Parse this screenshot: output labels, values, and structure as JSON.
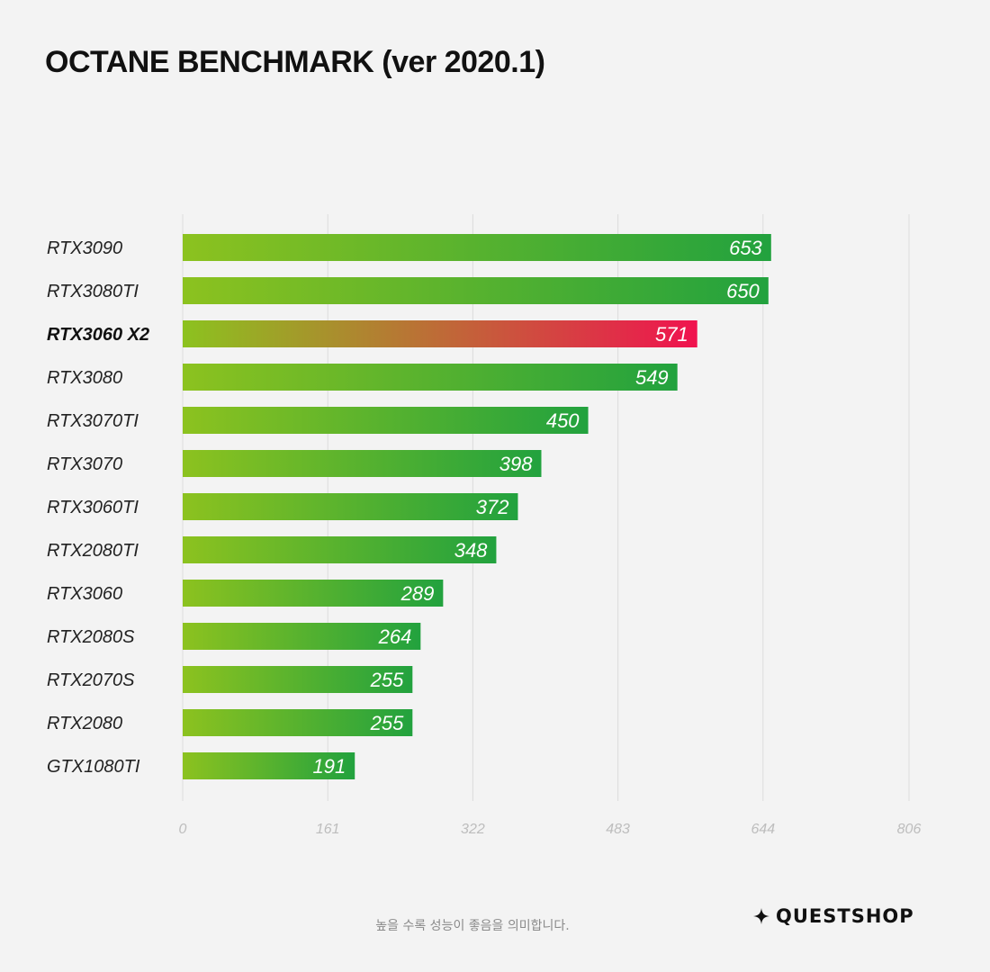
{
  "colors": {
    "green_start": "#8cc21f",
    "green_end": "#22a23e",
    "highlight_start": "#8cc21f",
    "highlight_end": "#f0134f",
    "grid": "#dcdcdc",
    "background": "#f3f3f3"
  },
  "chart_data": {
    "type": "bar",
    "orientation": "horizontal",
    "title": "OCTANE BENCHMARK (ver 2020.1)",
    "categories": [
      "RTX3090",
      "RTX3080TI",
      "RTX3060 X2",
      "RTX3080",
      "RTX3070TI",
      "RTX3070",
      "RTX3060TI",
      "RTX2080TI",
      "RTX3060",
      "RTX2080S",
      "RTX2070S",
      "RTX2080",
      "GTX1080TI"
    ],
    "values": [
      653,
      650,
      571,
      549,
      450,
      398,
      372,
      348,
      289,
      264,
      255,
      255,
      191
    ],
    "highlight": "RTX3060 X2",
    "xlim": [
      0,
      806
    ],
    "xticks": [
      0,
      161,
      322,
      483,
      644,
      806
    ],
    "grid": true
  },
  "footer": {
    "note": "높을 수록 성능이 좋음을 의미합니다.",
    "brand": "QUESTSHOP",
    "brand_icon": "sparkle-star-icon"
  }
}
